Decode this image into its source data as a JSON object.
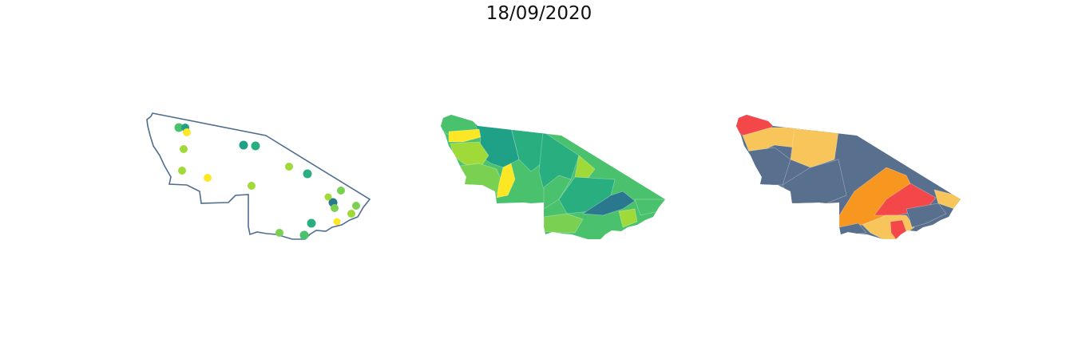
{
  "title": "18/09/2020",
  "colors": {
    "outline": "#4f6e8f",
    "viridis": [
      "#fde725",
      "#a0da39",
      "#7ad151",
      "#4ac16d",
      "#29af7f",
      "#1fa187",
      "#2a788e",
      "#355f8d"
    ],
    "risk": {
      "low": "#586f8e",
      "moderate": "#f7c55a",
      "high": "#f7971f",
      "very_high": "#f4474a"
    }
  },
  "maps": [
    {
      "name": "points-map",
      "points": [
        {
          "id": "p1",
          "level": 3
        },
        {
          "id": "p2",
          "level": 5
        },
        {
          "id": "p3",
          "level": 0
        },
        {
          "id": "p4",
          "level": 1
        },
        {
          "id": "p5",
          "level": 1
        },
        {
          "id": "p6",
          "level": 0
        },
        {
          "id": "p7",
          "level": 5
        },
        {
          "id": "p8",
          "level": 4
        },
        {
          "id": "p9",
          "level": 1
        },
        {
          "id": "p10",
          "level": 4
        },
        {
          "id": "p11",
          "level": 1
        },
        {
          "id": "p12",
          "level": 2
        },
        {
          "id": "p13",
          "level": 6
        },
        {
          "id": "p14",
          "level": 1
        },
        {
          "id": "p15",
          "level": 2
        },
        {
          "id": "p16",
          "level": 4
        },
        {
          "id": "p17",
          "level": 0
        },
        {
          "id": "p18",
          "level": 1
        },
        {
          "id": "p19",
          "level": 2
        },
        {
          "id": "p20",
          "level": 2
        },
        {
          "id": "p21",
          "level": 3
        }
      ]
    },
    {
      "name": "choropleth-map",
      "regions": [
        {
          "id": "r1",
          "level": 3
        },
        {
          "id": "r2",
          "level": 5
        },
        {
          "id": "r3",
          "level": 0
        },
        {
          "id": "r4",
          "level": 1
        },
        {
          "id": "r5",
          "level": 2
        },
        {
          "id": "r6",
          "level": 4
        },
        {
          "id": "r7",
          "level": 0
        },
        {
          "id": "r8",
          "level": 4
        },
        {
          "id": "r9",
          "level": 1
        },
        {
          "id": "r10",
          "level": 3
        },
        {
          "id": "r11",
          "level": 4
        },
        {
          "id": "r12",
          "level": 6
        },
        {
          "id": "r13",
          "level": 2
        },
        {
          "id": "r14",
          "level": 1
        },
        {
          "id": "r15",
          "level": 3
        }
      ]
    },
    {
      "name": "risk-map",
      "regions": [
        {
          "id": "k1",
          "class": "very_high"
        },
        {
          "id": "k2",
          "class": "moderate"
        },
        {
          "id": "k3",
          "class": "moderate"
        },
        {
          "id": "k4",
          "class": "low"
        },
        {
          "id": "k5",
          "class": "low"
        },
        {
          "id": "k6",
          "class": "high"
        },
        {
          "id": "k7",
          "class": "very_high"
        },
        {
          "id": "k8",
          "class": "moderate"
        },
        {
          "id": "k9",
          "class": "moderate"
        },
        {
          "id": "k10",
          "class": "low"
        },
        {
          "id": "k11",
          "class": "very_high"
        },
        {
          "id": "k12",
          "class": "low"
        }
      ]
    }
  ]
}
